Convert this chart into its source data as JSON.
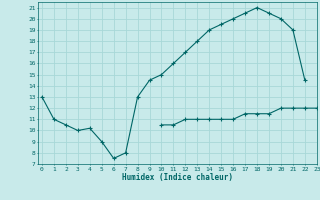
{
  "xlabel": "Humidex (Indice chaleur)",
  "bg_color": "#c8eaea",
  "grid_color": "#a8d8d8",
  "line_color": "#006666",
  "x_hours": [
    0,
    1,
    2,
    3,
    4,
    5,
    6,
    7,
    8,
    9,
    10,
    11,
    12,
    13,
    14,
    15,
    16,
    17,
    18,
    19,
    20,
    21,
    22,
    23
  ],
  "curve1_y": [
    13,
    11,
    10.5,
    10,
    10.2,
    9.0,
    7.5,
    8.0,
    13.0,
    14.5,
    15.0,
    16.0,
    17.0,
    18.0,
    19.0,
    19.5,
    20.0,
    20.5,
    21.0,
    20.5,
    20.0,
    19.0,
    14.5,
    null
  ],
  "curve2_y": [
    null,
    null,
    null,
    null,
    null,
    null,
    null,
    null,
    null,
    null,
    10.5,
    10.5,
    11.0,
    11.0,
    11.0,
    11.0,
    11.0,
    11.5,
    11.5,
    11.5,
    12.0,
    12.0,
    12.0,
    12.0
  ],
  "ylim": [
    7,
    21.5
  ],
  "xlim": [
    -0.3,
    23
  ],
  "yticks": [
    7,
    8,
    9,
    10,
    11,
    12,
    13,
    14,
    15,
    16,
    17,
    18,
    19,
    20,
    21
  ],
  "xticks": [
    0,
    1,
    2,
    3,
    4,
    5,
    6,
    7,
    8,
    9,
    10,
    11,
    12,
    13,
    14,
    15,
    16,
    17,
    18,
    19,
    20,
    21,
    22,
    23
  ]
}
